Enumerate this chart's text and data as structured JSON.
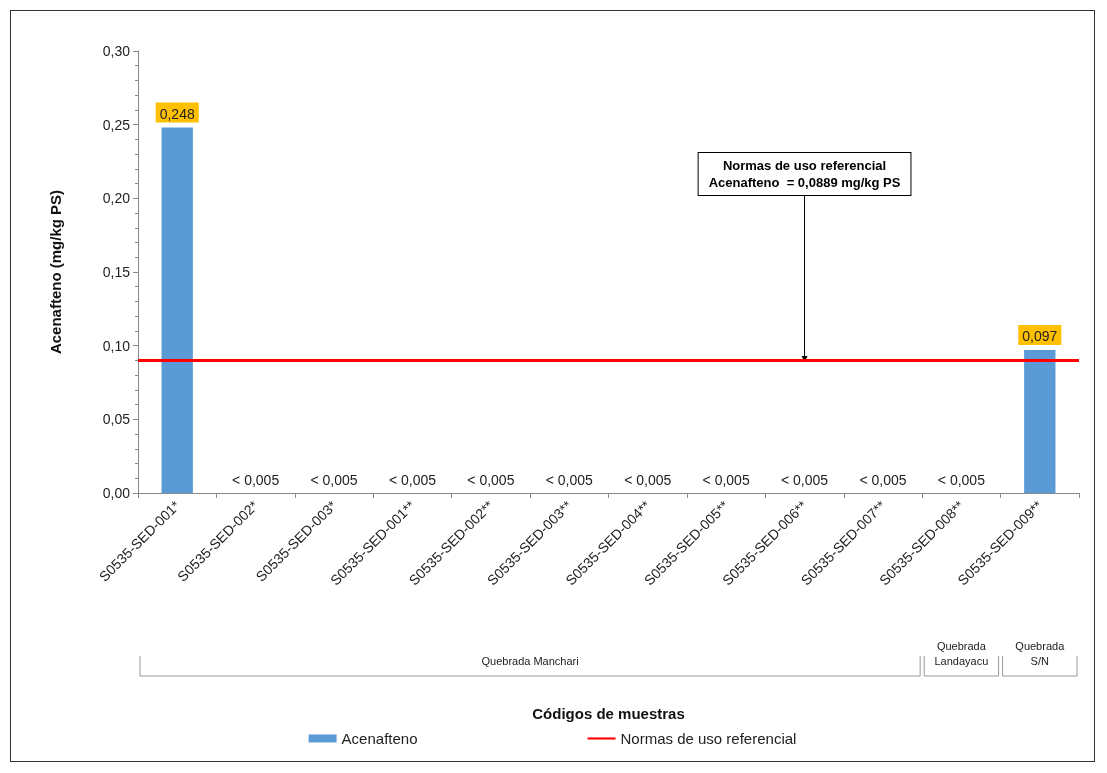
{
  "chart_data": {
    "type": "bar",
    "categories": [
      "S0535-SED-001*",
      "S0535-SED-002*",
      "S0535-SED-003*",
      "S0535-SED-001**",
      "S0535-SED-002**",
      "S0535-SED-003**",
      "S0535-SED-004**",
      "S0535-SED-005**",
      "S0535-SED-006**",
      "S0535-SED-007**",
      "S0535-SED-008**",
      "S0535-SED-009**"
    ],
    "series": [
      {
        "name": "Acenafteno",
        "color": "#5b9bd5",
        "values": [
          0.248,
          null,
          null,
          null,
          null,
          null,
          null,
          null,
          null,
          null,
          null,
          0.097
        ],
        "value_labels": [
          "0,248",
          "< 0,005",
          "< 0,005",
          "< 0,005",
          "< 0,005",
          "< 0,005",
          "< 0,005",
          "< 0,005",
          "< 0,005",
          "< 0,005",
          "< 0,005",
          "0,097"
        ]
      }
    ],
    "ylabel": "Acenafteno (mg/kg PS)",
    "ylim": [
      0,
      0.3
    ],
    "yticks": [
      {
        "value": 0,
        "label": "0,00"
      },
      {
        "value": 0.05,
        "label": "0,05"
      },
      {
        "value": 0.1,
        "label": "0,10"
      },
      {
        "value": 0.15,
        "label": "0,15"
      },
      {
        "value": 0.2,
        "label": "0,20"
      },
      {
        "value": 0.25,
        "label": "0,25"
      },
      {
        "value": 0.3,
        "label": "0,30"
      }
    ],
    "ref_lines": [
      {
        "axis": "y",
        "value": 0.0889,
        "label": "Normas de uso referencial",
        "color": "#ff0000"
      }
    ],
    "annotations": [
      {
        "text": "Normas de uso referencial\nAcenafteno  = 0,0889 mg/kg PS",
        "x": "S0535-SED-006**",
        "y": 0.0889
      },
      "Quebrada Manchari",
      "Quebrada\nLandayacu",
      "Quebrada\nS/N",
      "Códigos de muestras"
    ],
    "legend": "bottom",
    "grid": false
  }
}
